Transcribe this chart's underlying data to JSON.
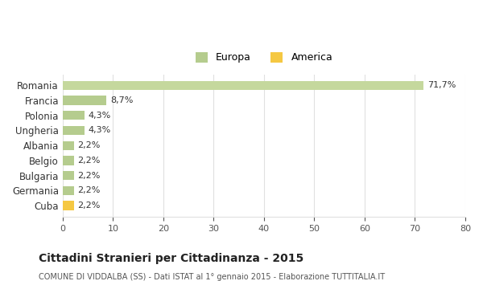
{
  "categories": [
    "Cuba",
    "Germania",
    "Bulgaria",
    "Belgio",
    "Albania",
    "Ungheria",
    "Polonia",
    "Francia",
    "Romania"
  ],
  "values": [
    2.2,
    2.2,
    2.2,
    2.2,
    2.2,
    4.3,
    4.3,
    8.7,
    71.7
  ],
  "colors": [
    "#f5c842",
    "#b5cc8e",
    "#b5cc8e",
    "#b5cc8e",
    "#b5cc8e",
    "#b5cc8e",
    "#b5cc8e",
    "#b5cc8e",
    "#c5d89d"
  ],
  "labels": [
    "2,2%",
    "2,2%",
    "2,2%",
    "2,2%",
    "2,2%",
    "4,3%",
    "4,3%",
    "8,7%",
    "71,7%"
  ],
  "legend_europa_color": "#b5cc8e",
  "legend_america_color": "#f5c842",
  "legend_europa_label": "Europa",
  "legend_america_label": "America",
  "title": "Cittadini Stranieri per Cittadinanza - 2015",
  "subtitle": "COMUNE DI VIDDALBA (SS) - Dati ISTAT al 1° gennaio 2015 - Elaborazione TUTTITALIA.IT",
  "xlim": [
    0,
    80
  ],
  "xticks": [
    0,
    10,
    20,
    30,
    40,
    50,
    60,
    70,
    80
  ],
  "background_color": "#ffffff",
  "grid_color": "#e0e0e0",
  "bar_height": 0.6
}
